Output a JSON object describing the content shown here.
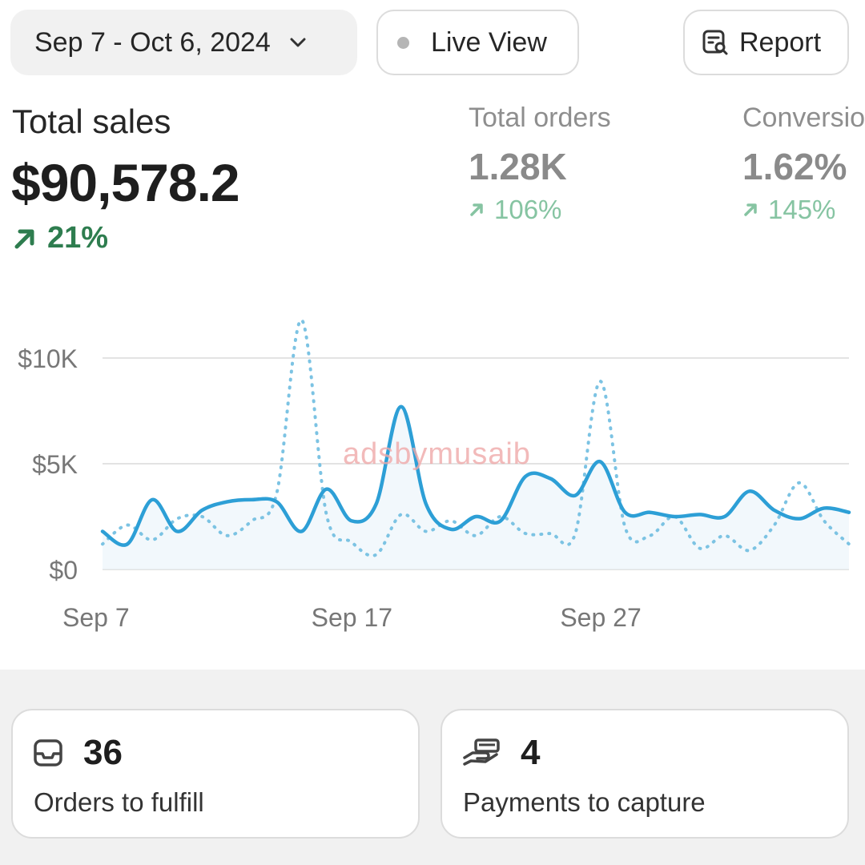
{
  "header": {
    "date_range": "Sep 7 - Oct 6, 2024",
    "live_view_label": "Live View",
    "report_label": "Report"
  },
  "metrics": {
    "total_sales": {
      "label": "Total sales",
      "value": "$90,578.2",
      "change": "21%"
    },
    "total_orders": {
      "label": "Total orders",
      "value": "1.28K",
      "change": "106%"
    },
    "conversion": {
      "label": "Conversion",
      "value": "1.62%",
      "change": "145%"
    }
  },
  "watermark": "adsbymusaib",
  "chart_data": {
    "type": "line",
    "y_ticks": [
      "$0",
      "$5K",
      "$10K"
    ],
    "x_ticks": [
      "Sep 7",
      "Sep 17",
      "Sep 27"
    ],
    "ylim": [
      0,
      12000
    ],
    "grid": true,
    "x_days": 30,
    "series": [
      {
        "style": "solid",
        "color": "#2d9fd6",
        "values": [
          1800,
          1200,
          3300,
          1800,
          2800,
          3200,
          3300,
          3200,
          1800,
          3800,
          2300,
          3100,
          7700,
          3100,
          1900,
          2500,
          2300,
          4400,
          4300,
          3500,
          5100,
          2700,
          2700,
          2500,
          2600,
          2500,
          3700,
          2800,
          2400,
          2900,
          2700
        ]
      },
      {
        "style": "dotted",
        "color": "#7cc3e3",
        "values": [
          1200,
          2100,
          1400,
          2400,
          2500,
          1600,
          2300,
          3600,
          11800,
          2600,
          1300,
          700,
          2600,
          1800,
          2300,
          1600,
          2500,
          1700,
          1700,
          1700,
          8900,
          2000,
          1600,
          2500,
          1000,
          1600,
          900,
          2100,
          4100,
          2300,
          1200
        ]
      }
    ]
  },
  "tasks": {
    "orders": {
      "count": "36",
      "label": "Orders to fulfill"
    },
    "payments": {
      "count": "4",
      "label": "Payments to capture"
    }
  }
}
